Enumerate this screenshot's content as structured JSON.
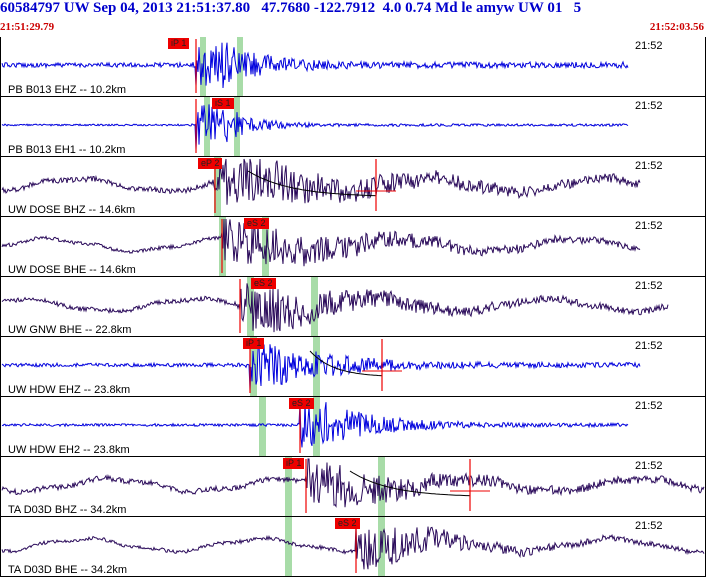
{
  "header": {
    "title": "60584797 UW Sep 04, 2013 21:51:37.80   47.7680 -122.7912  4.0 0.74 Md le amyw UW 01   5",
    "start_time": "21:51:29.79",
    "end_time": "21:52:03.56"
  },
  "colors": {
    "trace_blue": "#0000dd",
    "trace_purple": "#2a0a5a",
    "pick_red": "#ee0000",
    "highlight_green": "#a8dca8",
    "header_blue": "#0000cc",
    "time_red": "#cc0000"
  },
  "channels": [
    {
      "label": "PB B013 EHZ -- 10.2km",
      "time_label": "21:52",
      "pick": "iP 1",
      "color": "blue"
    },
    {
      "label": "PB B013 EH1 -- 10.2km",
      "time_label": "21:52",
      "pick": "iS 1",
      "color": "blue"
    },
    {
      "label": "UW DOSE BHZ -- 14.6km",
      "time_label": "21:52",
      "pick": "eP 2",
      "color": "purple"
    },
    {
      "label": "UW DOSE BHE -- 14.6km",
      "time_label": "21:52",
      "pick": "eS 2",
      "color": "purple"
    },
    {
      "label": "UW GNW BHE -- 22.8km",
      "time_label": "21:52",
      "pick": "eS 2",
      "color": "purple"
    },
    {
      "label": "UW HDW EHZ -- 23.8km",
      "time_label": "21:52",
      "pick": "iP 1",
      "color": "blue"
    },
    {
      "label": "UW HDW EH2 -- 23.8km",
      "time_label": "21:52",
      "pick": "eS 2",
      "color": "blue"
    },
    {
      "label": "TA D03D BHZ -- 34.2km",
      "time_label": "21:52",
      "pick": "iP 1",
      "color": "purple"
    },
    {
      "label": "TA D03D BHE -- 34.2km",
      "time_label": "21:52",
      "pick": "eS 2",
      "color": "purple"
    }
  ]
}
